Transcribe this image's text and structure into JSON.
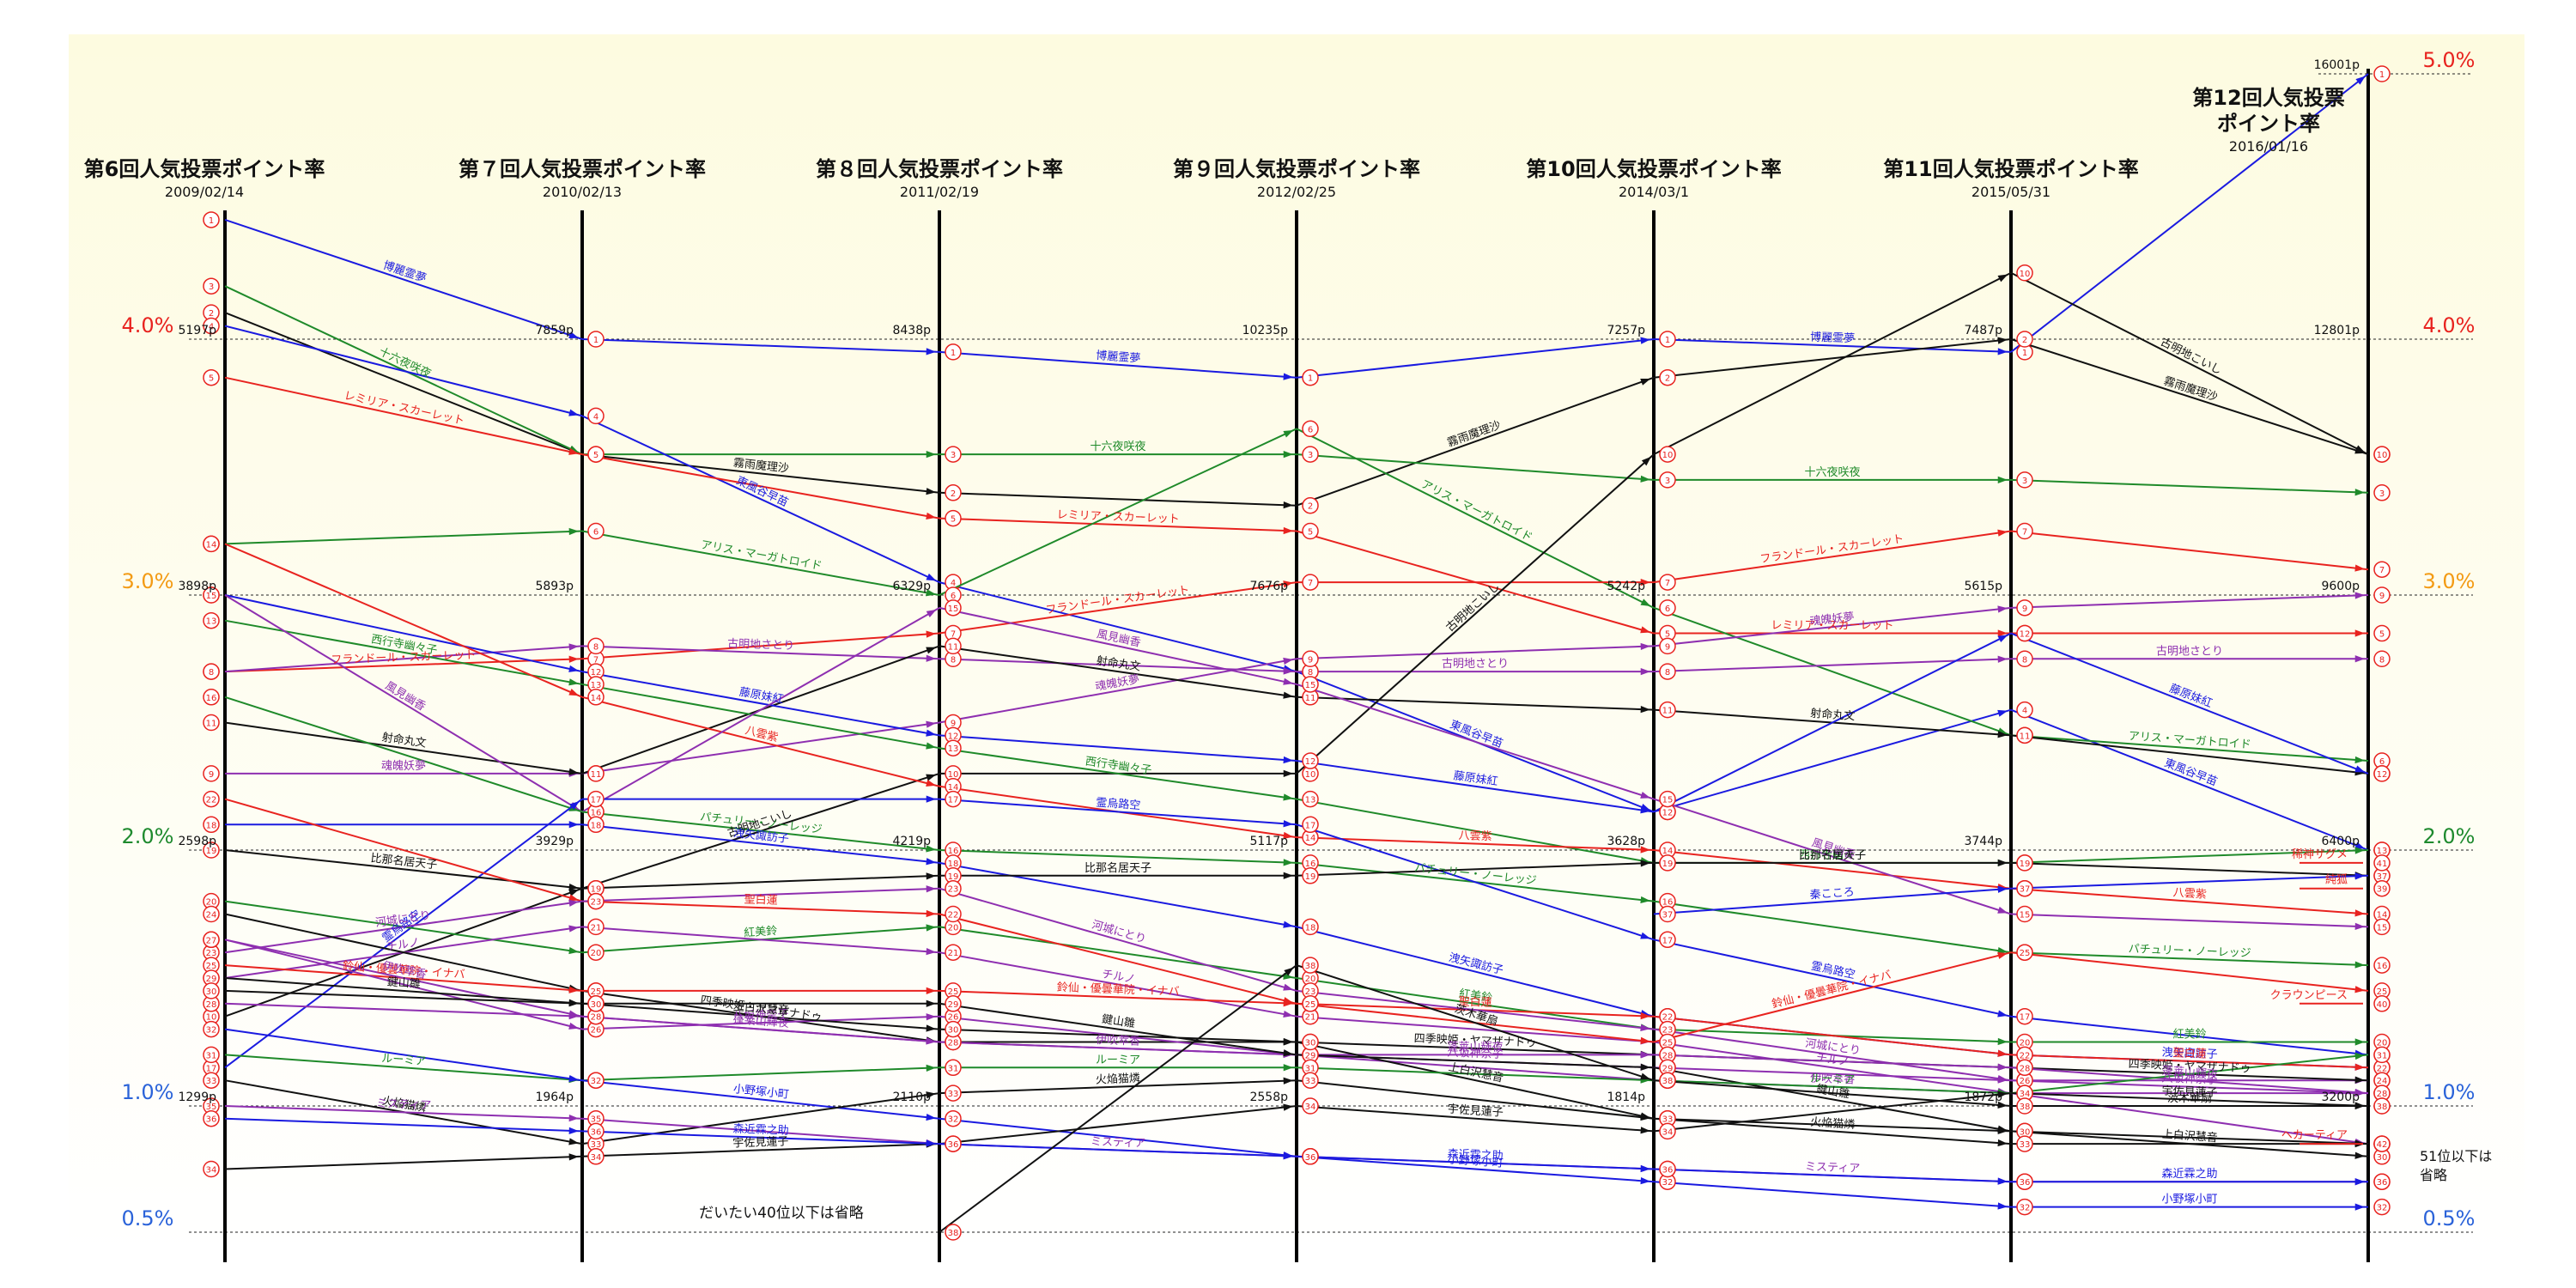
{
  "chart_data": {
    "type": "line",
    "title": "",
    "colors": {
      "background": "#fdfbe0",
      "red": "#e8231f",
      "orange": "#f39b14",
      "green": "#1e8a2e",
      "blue": "#2b63d9",
      "axis": "#000000"
    },
    "percent_scale": [
      {
        "label": "5.0%",
        "value": 5.0,
        "color": "red"
      },
      {
        "label": "4.0%",
        "value": 4.0,
        "color": "red"
      },
      {
        "label": "3.0%",
        "value": 3.0,
        "color": "orange"
      },
      {
        "label": "2.0%",
        "value": 2.0,
        "color": "green"
      },
      {
        "label": "1.0%",
        "value": 1.0,
        "color": "blue"
      },
      {
        "label": "0.5%",
        "value": 0.5,
        "color": "blue"
      }
    ],
    "polls": [
      {
        "title": "第6回人気投票ポイント率",
        "date": "2009/02/14",
        "points": [
          {
            "label": "5197p",
            "at": 4.0
          },
          {
            "label": "3898p",
            "at": 3.0
          },
          {
            "label": "2598p",
            "at": 2.0
          },
          {
            "label": "1299p",
            "at": 1.0
          }
        ]
      },
      {
        "title": "第７回人気投票ポイント率",
        "date": "2010/02/13",
        "points": [
          {
            "label": "7859p",
            "at": 4.0
          },
          {
            "label": "5893p",
            "at": 3.0
          },
          {
            "label": "3929p",
            "at": 2.0
          },
          {
            "label": "1964p",
            "at": 1.0
          }
        ]
      },
      {
        "title": "第８回人気投票ポイント率",
        "date": "2011/02/19",
        "points": [
          {
            "label": "8438p",
            "at": 4.0
          },
          {
            "label": "6329p",
            "at": 3.0
          },
          {
            "label": "4219p",
            "at": 2.0
          },
          {
            "label": "2110p",
            "at": 1.0
          }
        ]
      },
      {
        "title": "第９回人気投票ポイント率",
        "date": "2012/02/25",
        "points": [
          {
            "label": "10235p",
            "at": 4.0
          },
          {
            "label": "7676p",
            "at": 3.0
          },
          {
            "label": "5117p",
            "at": 2.0
          },
          {
            "label": "2558p",
            "at": 1.0
          }
        ]
      },
      {
        "title": "第10回人気投票ポイント率",
        "date": "2014/03/1",
        "points": [
          {
            "label": "7257p",
            "at": 4.0
          },
          {
            "label": "5242p",
            "at": 3.0
          },
          {
            "label": "3628p",
            "at": 2.0
          },
          {
            "label": "1814p",
            "at": 1.0
          }
        ]
      },
      {
        "title": "第11回人気投票ポイント率",
        "date": "2015/05/31",
        "points": [
          {
            "label": "7487p",
            "at": 4.0
          },
          {
            "label": "5615p",
            "at": 3.0
          },
          {
            "label": "3744p",
            "at": 2.0
          },
          {
            "label": "1872p",
            "at": 1.0
          }
        ]
      },
      {
        "title": "第12回人気投票\nポイント率",
        "date": "2016/01/16",
        "points": [
          {
            "label": "16001p",
            "at": 5.0
          },
          {
            "label": "12801p",
            "at": 4.0
          },
          {
            "label": "9600p",
            "at": 3.0
          },
          {
            "label": "6400p",
            "at": 2.0
          },
          {
            "label": "3200p",
            "at": 1.0
          }
        ]
      }
    ],
    "notes": {
      "omitted": "だいたい40位以下は省略",
      "omitted_51": "51位以下は\n省略"
    },
    "series": [
      {
        "name": "博麗霊夢",
        "color": "#1a1ae0",
        "values": [
          4.45,
          4.0,
          3.95,
          3.85,
          4.0,
          3.95,
          5.0
        ],
        "ranks": [
          1,
          1,
          1,
          1,
          1,
          1,
          1
        ]
      },
      {
        "name": "霧雨魔理沙",
        "color": "#111111",
        "values": [
          4.1,
          3.55,
          3.4,
          3.35,
          3.85,
          4.0,
          3.55
        ],
        "ranks": [
          2,
          2,
          2,
          2,
          2,
          2,
          2
        ]
      },
      {
        "name": "十六夜咲夜",
        "color": "#1f8a2a",
        "values": [
          4.2,
          3.55,
          3.55,
          3.55,
          3.45,
          3.45,
          3.4
        ],
        "ranks": [
          3,
          3,
          3,
          3,
          3,
          3,
          3
        ]
      },
      {
        "name": "東風谷早苗",
        "color": "#1a1ae0",
        "values": [
          4.05,
          3.7,
          3.05,
          2.7,
          2.15,
          2.55,
          2.0
        ],
        "ranks": [
          4,
          4,
          4,
          4,
          4,
          4,
          4
        ]
      },
      {
        "name": "レミリア・スカーレット",
        "color": "#e8231f",
        "values": [
          3.85,
          3.55,
          3.3,
          3.25,
          2.85,
          2.85,
          2.85
        ],
        "ranks": [
          5,
          5,
          5,
          5,
          5,
          5,
          5
        ]
      },
      {
        "name": "アリス・マーガトロイド",
        "color": "#1f8a2a",
        "values": [
          3.2,
          3.25,
          3.0,
          3.65,
          2.95,
          2.45,
          2.35
        ],
        "ranks": [
          6,
          6,
          6,
          6,
          6,
          6,
          6
        ]
      },
      {
        "name": "フランドール・スカーレット",
        "color": "#e8231f",
        "values": [
          2.7,
          2.75,
          2.85,
          3.05,
          3.05,
          3.25,
          3.1
        ],
        "ranks": [
          7,
          7,
          7,
          7,
          7,
          7,
          7
        ]
      },
      {
        "name": "古明地さとり",
        "color": "#8e2fb0",
        "values": [
          2.7,
          2.8,
          2.75,
          2.7,
          2.7,
          2.75,
          2.75
        ],
        "ranks": [
          8,
          8,
          8,
          8,
          8,
          8,
          8
        ]
      },
      {
        "name": "魂魄妖夢",
        "color": "#8e2fb0",
        "values": [
          2.3,
          2.3,
          2.5,
          2.75,
          2.8,
          2.95,
          3.0
        ],
        "ranks": [
          9,
          9,
          9,
          9,
          9,
          9,
          9
        ]
      },
      {
        "name": "古明地こいし",
        "color": "#111111",
        "values": [
          1.35,
          1.85,
          2.3,
          2.3,
          3.55,
          4.25,
          3.55
        ],
        "ranks": [
          10,
          10,
          10,
          10,
          10,
          10,
          10
        ]
      },
      {
        "name": "射命丸文",
        "color": "#111111",
        "values": [
          2.5,
          2.3,
          2.8,
          2.6,
          2.55,
          2.45,
          2.3
        ],
        "ranks": [
          11,
          11,
          11,
          11,
          11,
          11,
          11
        ]
      },
      {
        "name": "藤原妹紅",
        "color": "#1a1ae0",
        "values": [
          3.0,
          2.7,
          2.45,
          2.35,
          2.15,
          2.85,
          2.3
        ],
        "ranks": [
          12,
          12,
          12,
          12,
          12,
          12,
          12
        ]
      },
      {
        "name": "西行寺幽々子",
        "color": "#1f8a2a",
        "values": [
          2.9,
          2.65,
          2.4,
          2.2,
          1.95,
          1.95,
          2.0
        ],
        "ranks": [
          13,
          13,
          13,
          13,
          13,
          13,
          13
        ]
      },
      {
        "name": "八雲紫",
        "color": "#e8231f",
        "values": [
          3.2,
          2.6,
          2.25,
          2.05,
          2.0,
          1.85,
          1.75
        ],
        "ranks": [
          14,
          14,
          14,
          14,
          14,
          14,
          14
        ]
      },
      {
        "name": "風見幽香",
        "color": "#8e2fb0",
        "values": [
          3.0,
          2.15,
          2.95,
          2.65,
          2.2,
          1.75,
          1.7
        ],
        "ranks": [
          15,
          15,
          15,
          15,
          15,
          15,
          15
        ]
      },
      {
        "name": "パチュリー・ノーレッジ",
        "color": "#1f8a2a",
        "values": [
          2.6,
          2.15,
          2.0,
          1.95,
          1.8,
          1.6,
          1.55
        ],
        "ranks": [
          16,
          16,
          16,
          16,
          16,
          16,
          16
        ]
      },
      {
        "name": "霊烏路空",
        "color": "#1a1ae0",
        "values": [
          1.15,
          2.2,
          2.2,
          2.1,
          1.65,
          1.35,
          1.2
        ],
        "ranks": [
          17,
          17,
          17,
          17,
          17,
          17,
          17
        ]
      },
      {
        "name": "洩矢諏訪子",
        "color": "#1a1ae0",
        "values": [
          2.1,
          2.1,
          1.95,
          1.7,
          1.35,
          1.2,
          1.15
        ],
        "ranks": [
          18,
          18,
          18,
          18,
          18,
          18,
          18
        ]
      },
      {
        "name": "比那名居天子",
        "color": "#111111",
        "values": [
          2.0,
          1.85,
          1.9,
          1.9,
          1.95,
          1.95,
          1.9
        ],
        "ranks": [
          19,
          19,
          19,
          19,
          19,
          19,
          19
        ]
      },
      {
        "name": "紅美鈴",
        "color": "#1f8a2a",
        "values": [
          1.8,
          1.6,
          1.7,
          1.5,
          1.3,
          1.25,
          1.25
        ],
        "ranks": [
          20,
          20,
          20,
          20,
          20,
          20,
          20
        ]
      },
      {
        "name": "チルノ",
        "color": "#8e2fb0",
        "values": [
          1.5,
          1.7,
          1.6,
          1.35,
          1.25,
          1.05,
          1.05
        ],
        "ranks": [
          21,
          21,
          21,
          21,
          21,
          21,
          21
        ]
      },
      {
        "name": "聖白蓮",
        "color": "#e8231f",
        "values": [
          2.2,
          1.8,
          1.75,
          1.4,
          1.35,
          1.2,
          1.15
        ],
        "ranks": [
          22,
          22,
          22,
          22,
          22,
          22,
          22
        ]
      },
      {
        "name": "河城にとり",
        "color": "#8e2fb0",
        "values": [
          1.6,
          1.8,
          1.85,
          1.45,
          1.3,
          1.1,
          1.1
        ],
        "ranks": [
          23,
          23,
          23,
          23,
          23,
          23,
          23
        ]
      },
      {
        "name": "四季映姫・ヤマザナドゥ",
        "color": "#111111",
        "values": [
          1.75,
          1.45,
          1.25,
          1.25,
          1.2,
          1.15,
          1.1
        ],
        "ranks": [
          24,
          24,
          24,
          24,
          24,
          24,
          24
        ]
      },
      {
        "name": "鈴仙・優曇華院・イナバ",
        "color": "#e8231f",
        "values": [
          1.55,
          1.45,
          1.45,
          1.4,
          1.25,
          1.6,
          1.45
        ],
        "ranks": [
          25,
          25,
          25,
          25,
          25,
          25,
          25
        ]
      },
      {
        "name": "八坂神奈子",
        "color": "#8e2fb0",
        "values": [
          1.65,
          1.3,
          1.35,
          1.2,
          1.15,
          1.1,
          1.05
        ],
        "ranks": [
          26,
          26,
          26,
          26,
          26,
          26,
          26
        ]
      },
      {
        "name": "伊吹萃香",
        "color": "#8e2fb0",
        "values": [
          1.65,
          1.35,
          1.25,
          1.2,
          1.1,
          1.05,
          0.85
        ],
        "ranks": [
          27,
          27,
          27,
          27,
          27,
          27,
          27
        ]
      },
      {
        "name": "蓬莱山輝夜",
        "color": "#8e2fb0",
        "values": [
          1.4,
          1.35,
          1.25,
          1.2,
          1.2,
          1.15,
          1.05
        ],
        "ranks": [
          28,
          28,
          28,
          28,
          28,
          28,
          28
        ]
      },
      {
        "name": "鍵山雛",
        "color": "#111111",
        "values": [
          1.5,
          1.4,
          1.4,
          1.2,
          1.15,
          0.9,
          0.85
        ],
        "ranks": [
          29,
          29,
          29,
          29,
          29,
          29,
          29
        ]
      },
      {
        "name": "上白沢慧音",
        "color": "#111111",
        "values": [
          1.45,
          1.4,
          1.3,
          1.25,
          0.95,
          0.9,
          0.8
        ],
        "ranks": [
          30,
          30,
          30,
          30,
          30,
          30,
          30
        ]
      },
      {
        "name": "ルーミア",
        "color": "#1f8a2a",
        "values": [
          1.2,
          1.1,
          1.15,
          1.15,
          1.1,
          1.05,
          1.2
        ],
        "ranks": [
          31,
          31,
          31,
          31,
          31,
          31,
          31
        ]
      },
      {
        "name": "小野塚小町",
        "color": "#1a1ae0",
        "values": [
          1.3,
          1.1,
          0.95,
          0.8,
          0.7,
          0.6,
          0.6
        ],
        "ranks": [
          32,
          32,
          32,
          32,
          32,
          32,
          32
        ]
      },
      {
        "name": "火焔猫燐",
        "color": "#111111",
        "values": [
          1.1,
          0.85,
          1.05,
          1.1,
          0.95,
          0.85,
          0.85
        ],
        "ranks": [
          33,
          33,
          33,
          33,
          33,
          33,
          33
        ]
      },
      {
        "name": "宇佐見蓮子",
        "color": "#111111",
        "values": [
          0.75,
          0.8,
          0.85,
          1.0,
          0.9,
          1.05,
          1.0
        ],
        "ranks": [
          34,
          34,
          34,
          34,
          34,
          34,
          34
        ]
      },
      {
        "name": "ミスティア",
        "color": "#8e2fb0",
        "values": [
          1.0,
          0.95,
          0.85,
          0.8,
          0.75,
          0.7,
          0.7
        ],
        "ranks": [
          35,
          35,
          35,
          35,
          35,
          35,
          35
        ]
      },
      {
        "name": "森近霖之助",
        "color": "#1a1ae0",
        "values": [
          0.95,
          0.9,
          0.85,
          0.8,
          0.75,
          0.7,
          0.7
        ],
        "ranks": [
          36,
          36,
          36,
          36,
          36,
          36,
          36
        ]
      },
      {
        "name": "秦こころ",
        "color": "#1a1ae0",
        "values": [
          null,
          null,
          null,
          null,
          1.75,
          1.85,
          1.9
        ],
        "ranks": [
          null,
          null,
          null,
          null,
          37,
          37,
          37
        ]
      },
      {
        "name": "茨木華扇",
        "color": "#111111",
        "values": [
          null,
          null,
          0.5,
          1.55,
          1.1,
          1.0,
          1.0
        ],
        "ranks": [
          null,
          null,
          38,
          38,
          38,
          38,
          38
        ]
      },
      {
        "name": "純狐",
        "color": "#e8231f",
        "values": [
          null,
          null,
          null,
          null,
          null,
          null,
          1.85
        ],
        "ranks": [
          null,
          null,
          null,
          null,
          null,
          null,
          39
        ]
      },
      {
        "name": "クラウンピース",
        "color": "#e8231f",
        "values": [
          null,
          null,
          null,
          null,
          null,
          null,
          1.4
        ],
        "ranks": [
          null,
          null,
          null,
          null,
          null,
          null,
          40
        ]
      },
      {
        "name": "稀神サグメ",
        "color": "#e8231f",
        "values": [
          null,
          null,
          null,
          null,
          null,
          null,
          1.95
        ],
        "ranks": [
          null,
          null,
          null,
          null,
          null,
          null,
          41
        ]
      },
      {
        "name": "ヘカーティア",
        "color": "#e8231f",
        "values": [
          null,
          null,
          null,
          null,
          null,
          null,
          0.85
        ],
        "ranks": [
          null,
          null,
          null,
          null,
          null,
          null,
          42
        ]
      }
    ]
  }
}
